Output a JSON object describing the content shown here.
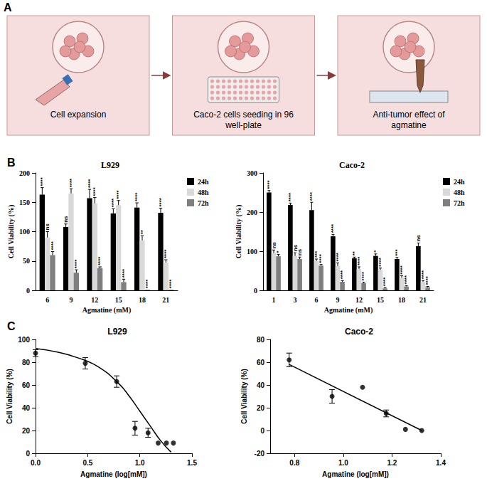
{
  "diagram": {
    "label": "A",
    "steps": [
      "Cell expansion",
      "Caco-2 cells seeding in 96 well-plate",
      "Anti-tumor effect of agmatine"
    ]
  },
  "chart_data": [
    {
      "panel": "B",
      "type": "bar",
      "title": "L929",
      "x_label": "Agmatine (mM)",
      "y_label": "Cell Viability (%)",
      "categories": [
        "6",
        "9",
        "12",
        "15",
        "18",
        "21"
      ],
      "series": [
        {
          "name": "24h",
          "color": "#000000",
          "values": [
            163,
            108,
            157,
            131,
            141,
            132
          ],
          "errors": [
            12,
            5,
            15,
            8,
            8,
            8
          ],
          "annotations": [
            "****",
            "ns",
            "****",
            "****",
            "****",
            "****"
          ]
        },
        {
          "name": "48h",
          "color": "#d9d9d9",
          "values": [
            90,
            165,
            148,
            145,
            85,
            47
          ],
          "errors": [
            10,
            8,
            10,
            8,
            8,
            5
          ],
          "annotations": [
            "ns",
            "****",
            "****",
            "****",
            "**",
            "****"
          ]
        },
        {
          "name": "72h",
          "color": "#7f7f7f",
          "values": [
            60,
            30,
            38,
            14,
            1,
            1
          ],
          "errors": [
            6,
            5,
            2,
            5,
            0,
            0
          ],
          "annotations": [
            "****",
            "****",
            "****",
            "****",
            "****",
            "****"
          ]
        }
      ],
      "ylim": [
        0,
        200
      ],
      "yticks": [
        0,
        50,
        100,
        150,
        200
      ],
      "grid": false,
      "legend": "right"
    },
    {
      "panel": "B",
      "type": "bar",
      "title": "Caco-2",
      "x_label": "Agmatine (mM)",
      "y_label": "Cell Viability (%)",
      "categories": [
        "1",
        "3",
        "6",
        "9",
        "12",
        "15",
        "18",
        "21"
      ],
      "series": [
        {
          "name": "24h",
          "color": "#000000",
          "values": [
            250,
            218,
            205,
            138,
            82,
            88,
            80,
            113
          ],
          "errors": [
            5,
            5,
            20,
            5,
            3,
            5,
            4,
            8
          ],
          "annotations": [
            "****",
            "****",
            "****",
            "****",
            "**",
            "*",
            "***",
            "ns"
          ]
        },
        {
          "name": "48h",
          "color": "#d9d9d9",
          "values": [
            95,
            88,
            75,
            62,
            55,
            52,
            32,
            22
          ],
          "errors": [
            8,
            8,
            5,
            8,
            5,
            5,
            5,
            3
          ],
          "annotations": [
            "ns",
            "ns",
            "***",
            "****",
            "****",
            "****",
            "****",
            "****"
          ]
        },
        {
          "name": "72h",
          "color": "#7f7f7f",
          "values": [
            87,
            80,
            63,
            22,
            18,
            5,
            10,
            8
          ],
          "errors": [
            5,
            5,
            3,
            3,
            3,
            2,
            2,
            2
          ],
          "annotations": [
            "*",
            "ns",
            "****",
            "****",
            "****",
            "****",
            "****",
            "****"
          ]
        }
      ],
      "ylim": [
        0,
        300
      ],
      "yticks": [
        0,
        100,
        200,
        300
      ],
      "grid": false,
      "legend": "right"
    },
    {
      "panel": "C",
      "type": "scatter",
      "title": "L929",
      "x_label": "Agmatine (log[mM])",
      "y_label": "Cell Viability (%)",
      "x": [
        0,
        0.477,
        0.778,
        0.954,
        1.079,
        1.176,
        1.255,
        1.322
      ],
      "values": [
        88,
        79,
        63,
        22,
        18,
        9,
        9,
        9
      ],
      "errors": [
        3,
        5,
        5,
        6,
        4,
        0,
        0,
        0
      ],
      "fit": {
        "x": [
          0,
          0.2,
          0.4,
          0.6,
          0.8,
          0.9,
          1.0,
          1.1,
          1.2,
          1.3
        ],
        "values": [
          92,
          89,
          84,
          76,
          61,
          50,
          37,
          24,
          11,
          1
        ],
        "line_style": "solid"
      },
      "color": "#000000",
      "marker": "circle",
      "xlim": [
        0,
        1.5
      ],
      "xticks": [
        {
          "value": 0,
          "label": "0.0"
        },
        {
          "value": 0.5,
          "label": "0.5"
        },
        {
          "value": 1,
          "label": "1.0"
        },
        {
          "value": 1.5,
          "label": "1.5"
        }
      ],
      "ylim": [
        0,
        100
      ],
      "yticks": [
        0,
        20,
        40,
        60,
        80,
        100
      ],
      "grid": false
    },
    {
      "panel": "C",
      "type": "scatter",
      "title": "Caco-2",
      "x_label": "Agmatine (log[mM])",
      "y_label": "Cell Viability (%)",
      "x": [
        0.778,
        0.954,
        1.079,
        1.176,
        1.255,
        1.322
      ],
      "values": [
        62,
        30,
        38,
        15,
        1,
        0
      ],
      "errors": [
        6,
        6,
        0,
        3,
        0,
        0
      ],
      "fit": {
        "x": [
          0.778,
          1.322
        ],
        "values": [
          58,
          0
        ],
        "line_style": "solid"
      },
      "color": "#000000",
      "marker": "circle",
      "xlim": [
        0.7,
        1.4
      ],
      "xticks": [
        0.8,
        {
          "value": 1,
          "label": "1.0"
        },
        1.2,
        1.4
      ],
      "ylim": [
        -20,
        80
      ],
      "yticks": [
        -20,
        0,
        20,
        40,
        60,
        80
      ],
      "grid": false
    }
  ]
}
